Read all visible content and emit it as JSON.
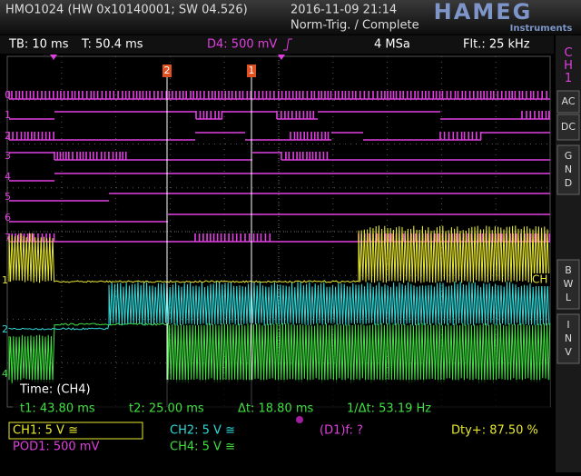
{
  "header": {
    "model": "HMO1024 (HW 0x10140001; SW 04.526)",
    "datetime": "2016-11-09 21:14",
    "trigger_status": "Norm-Trig. / Complete",
    "brand": "HAMEG",
    "brand_sub": "Instruments"
  },
  "status_bar": {
    "timebase": "TB: 10 ms",
    "trigger_time": "T: 50.4 ms",
    "trigger_source": "D4: 500 mV",
    "sample_rate": "4 MSa",
    "filter": "Flt.: 25 kHz"
  },
  "side_panel": {
    "channel": "CH1",
    "buttons": [
      "AC",
      "DC",
      "GND",
      "BWL",
      "INV"
    ]
  },
  "markers": {
    "digital": [
      "0",
      "1",
      "2",
      "3",
      "4",
      "5",
      "6",
      "7"
    ],
    "analog": [
      "1",
      "2",
      "4"
    ],
    "cursors": [
      "2",
      "1"
    ],
    "right": "CH"
  },
  "measurement": {
    "title": "Time: (CH4)",
    "t1": "t1: 43.80 ms",
    "t2": "t2: 25.00 ms",
    "delta": "Δt: 18.80 ms",
    "inverse": "1/Δt: 53.19 Hz"
  },
  "footer": {
    "ch1": "CH1: 5 V ≅",
    "ch2": "CH2: 5 V ≅",
    "frequency": "(D1)f: ?",
    "duty": "Dty+: 87.50 %",
    "pod1": "POD1: 500 mV",
    "ch4": "CH4: 5 V ≅"
  }
}
